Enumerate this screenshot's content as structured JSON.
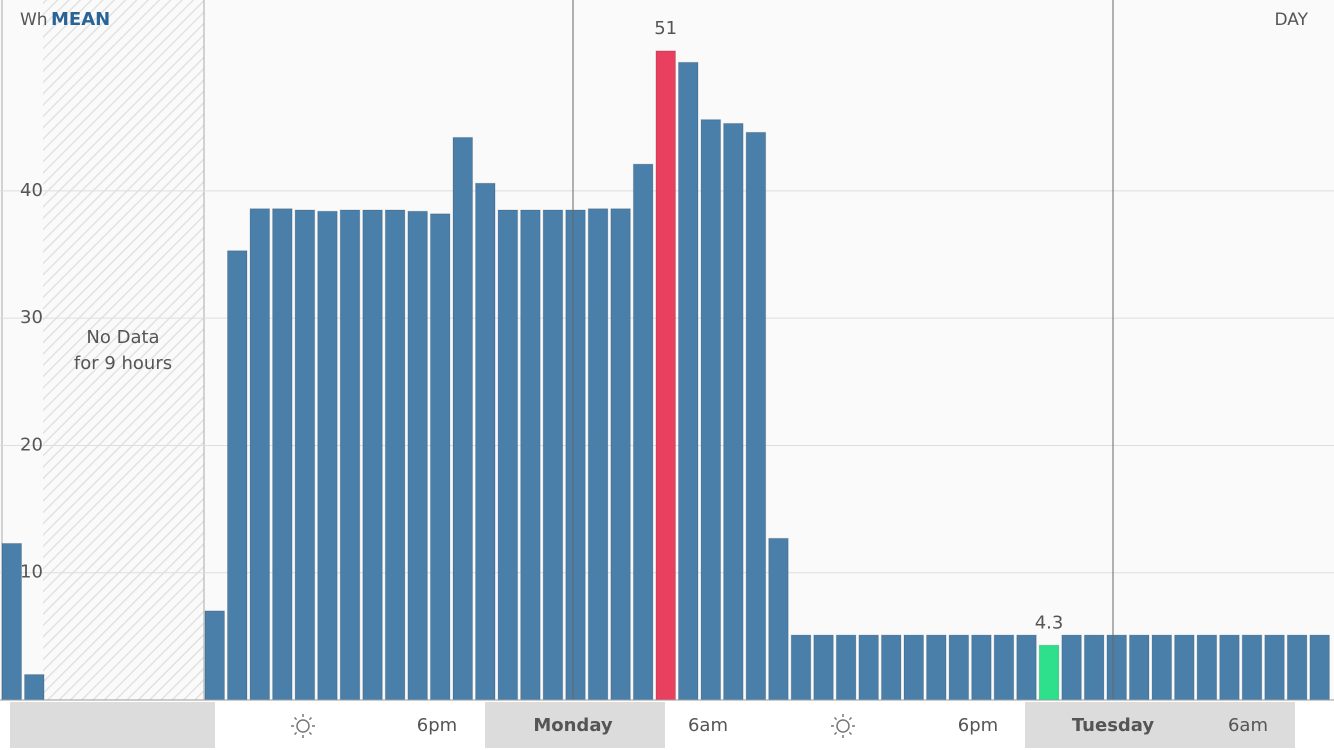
{
  "chart_data": {
    "type": "bar",
    "unit": "Wh",
    "mode": "MEAN",
    "period": "DAY",
    "no_data": [
      "No Data",
      "for 9 hours"
    ],
    "x_labels": [
      "6pm",
      "Monday",
      "6am",
      "6pm",
      "Tuesday",
      "6am"
    ],
    "series": [
      {
        "color": "#4a7faa",
        "values": [
          12.3,
          2.0,
          null,
          null,
          null,
          null,
          null,
          null,
          null,
          7.0,
          35.3,
          38.6,
          38.6,
          38.5,
          38.4,
          38.5,
          38.5,
          38.5,
          38.4,
          38.2,
          44.2,
          40.6,
          38.5,
          38.5,
          38.5,
          38.5,
          38.6,
          38.6,
          42.1,
          51,
          50.1,
          45.6,
          45.3,
          44.6,
          12.7,
          5.1,
          5.1,
          5.1,
          5.1,
          5.1,
          5.1,
          5.1,
          5.1,
          5.1,
          5.1,
          5.1,
          4.3,
          5.1,
          5.1,
          5.1,
          5.1,
          5.1,
          5.1,
          5.1,
          5.1,
          5.1,
          5.1,
          5.1,
          5.1
        ],
        "value_labels": [
          null,
          null,
          null,
          null,
          null,
          null,
          null,
          null,
          null,
          null,
          null,
          null,
          null,
          null,
          null,
          null,
          null,
          null,
          null,
          null,
          null,
          null,
          null,
          null,
          null,
          null,
          null,
          null,
          null,
          "51",
          null,
          null,
          null,
          null,
          null,
          null,
          null,
          null,
          null,
          null,
          null,
          null,
          null,
          null,
          null,
          null,
          "4.3",
          null,
          null,
          null,
          null,
          null,
          null,
          null,
          null,
          null,
          null,
          null,
          null
        ],
        "highlights": [
          {
            "index": 29,
            "color": "#ea4060"
          },
          {
            "index": 46,
            "color": "#2ee08c"
          }
        ]
      }
    ],
    "ylim": [
      0,
      55
    ],
    "yticks": [
      10,
      20,
      30,
      40
    ],
    "grid": true
  }
}
